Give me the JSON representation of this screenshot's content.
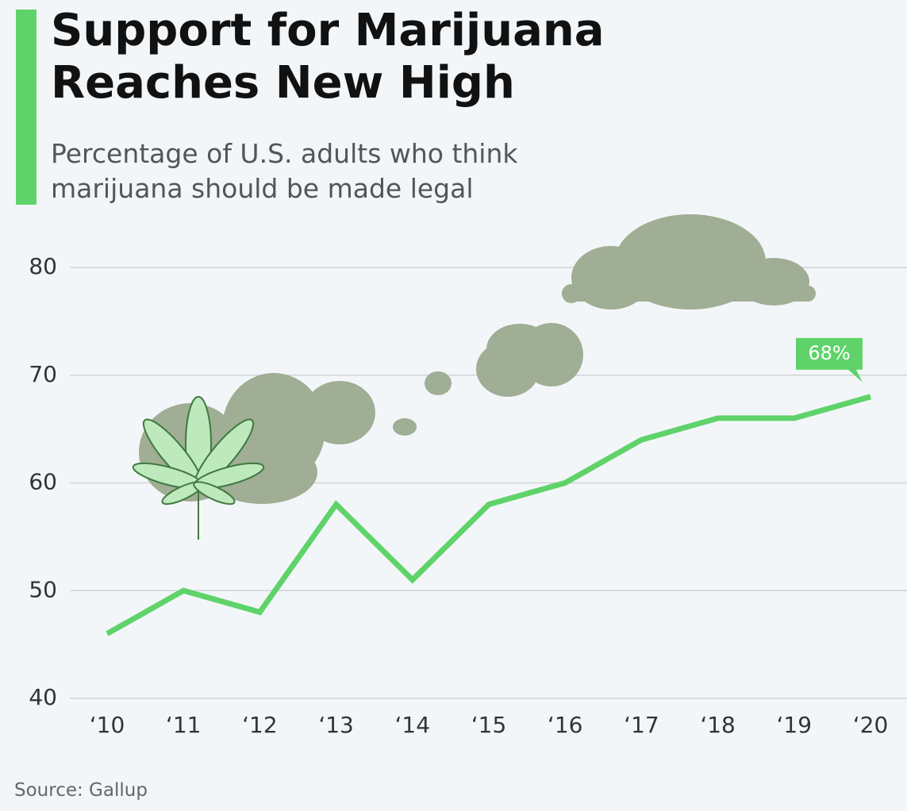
{
  "chart_data": {
    "type": "line",
    "title": "Support for Marijuana Reaches New High",
    "subtitle": "Percentage of U.S. adults who think marijuana should be made legal",
    "source": "Source: Gallup",
    "categories": [
      "‘10",
      "‘11",
      "‘12",
      "‘13",
      "‘14",
      "‘15",
      "‘16",
      "‘17",
      "‘18",
      "‘19",
      "‘20"
    ],
    "values": [
      46,
      50,
      48,
      58,
      51,
      58,
      60,
      64,
      66,
      66,
      68
    ],
    "value_labels": [
      null,
      null,
      null,
      null,
      null,
      null,
      null,
      null,
      null,
      null,
      "68%"
    ],
    "color": "#5fd36a",
    "ylim": [
      40,
      80
    ],
    "yticks": [
      40,
      50,
      60,
      70,
      80
    ],
    "grid": true
  }
}
